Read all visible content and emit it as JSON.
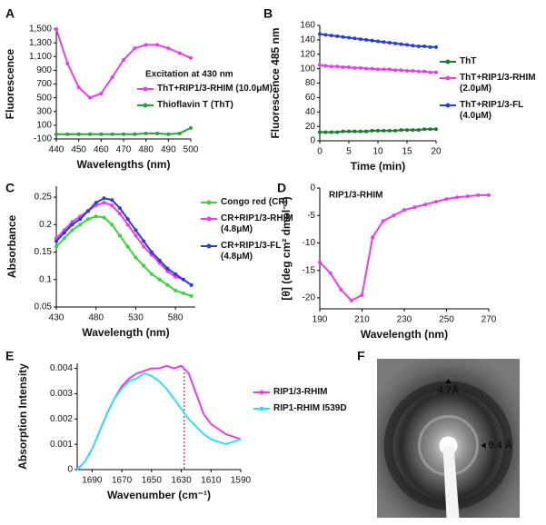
{
  "chart_data": [
    {
      "type": "line",
      "panel": "A",
      "annotation": "Excitation at 430 nm",
      "xlabel": "Wavelengths (nm)",
      "ylabel": "Fluorescence",
      "x": [
        440,
        445,
        450,
        455,
        460,
        465,
        470,
        475,
        480,
        485,
        490,
        495,
        500
      ],
      "xlim": [
        440,
        500
      ],
      "xticks": [
        440,
        450,
        460,
        470,
        480,
        490,
        500
      ],
      "ylim": [
        -100,
        1500
      ],
      "yticks": [
        -100,
        100,
        300,
        500,
        700,
        900,
        {
          "value": 1100,
          "label": "1,100"
        },
        {
          "value": 1300,
          "label": "1,300"
        },
        {
          "value": 1500,
          "label": "1,500"
        }
      ],
      "series": [
        {
          "name": "ThT+RIP1/3-RHIM (10.0μM)",
          "color": "#e83ee8",
          "values": [
            1500,
            1000,
            650,
            500,
            560,
            800,
            1050,
            1220,
            1270,
            1270,
            1220,
            1150,
            1080
          ]
        },
        {
          "name": "Thioflavin T (ThT)",
          "color": "#2e9e3e",
          "values": [
            -30,
            -30,
            -30,
            -30,
            -30,
            -30,
            -30,
            -30,
            -20,
            -20,
            -30,
            -20,
            60
          ]
        }
      ]
    },
    {
      "type": "line",
      "panel": "B",
      "xlabel": "Time (min)",
      "ylabel": "Fluorescence 485 nm",
      "x": [
        0,
        1,
        2,
        3,
        4,
        5,
        6,
        7,
        8,
        9,
        10,
        11,
        12,
        13,
        14,
        15,
        16,
        17,
        18,
        19,
        20
      ],
      "xlim": [
        0,
        20
      ],
      "xticks": [
        0,
        5,
        10,
        15,
        20
      ],
      "ylim": [
        0,
        160
      ],
      "yticks": [
        0,
        20,
        40,
        60,
        80,
        100,
        120,
        140,
        160
      ],
      "series": [
        {
          "name": "ThT",
          "color": "#1e7a30",
          "values": [
            12,
            12,
            12,
            12,
            13,
            13,
            13,
            13,
            13,
            14,
            14,
            14,
            14,
            14,
            15,
            15,
            15,
            15,
            16,
            16,
            16
          ]
        },
        {
          "name": "ThT+RIP1/3-RHIM (2.0μM)",
          "color": "#e83ee8",
          "values": [
            105,
            104,
            103,
            103,
            102,
            102,
            101,
            101,
            100,
            100,
            99,
            99,
            99,
            98,
            98,
            97,
            97,
            96,
            96,
            95,
            95
          ]
        },
        {
          "name": "ThT+RIP1/3-FL (4.0μM)",
          "color": "#2a3fd0",
          "values": [
            148,
            147,
            146,
            145,
            144,
            143,
            142,
            141,
            140,
            139,
            138,
            137,
            136,
            135,
            134,
            133,
            132,
            131,
            131,
            130,
            130
          ]
        }
      ]
    },
    {
      "type": "line",
      "panel": "C",
      "xlabel": "Wavelength (nm)",
      "ylabel": "Absorbance",
      "x": [
        430,
        440,
        450,
        460,
        470,
        480,
        490,
        500,
        510,
        520,
        530,
        540,
        550,
        560,
        570,
        580,
        590,
        600
      ],
      "xlim": [
        430,
        605
      ],
      "xticks": [
        430,
        480,
        530,
        580
      ],
      "ylim": [
        0.05,
        0.27
      ],
      "yticks": [
        0.05,
        0.1,
        0.15,
        0.2,
        0.25
      ],
      "series": [
        {
          "name": "Congo red (CR)",
          "color": "#3ad43a",
          "values": [
            0.16,
            0.175,
            0.19,
            0.2,
            0.21,
            0.215,
            0.213,
            0.2,
            0.18,
            0.16,
            0.14,
            0.125,
            0.11,
            0.1,
            0.09,
            0.08,
            0.075,
            0.07
          ]
        },
        {
          "name": "CR+RIP1/3-RHIM (4.8μM)",
          "color": "#e83ee8",
          "values": [
            0.175,
            0.19,
            0.205,
            0.215,
            0.225,
            0.235,
            0.24,
            0.235,
            0.22,
            0.2,
            0.18,
            0.16,
            0.145,
            0.13,
            0.115,
            0.105,
            0.1,
            0.09
          ]
        },
        {
          "name": "CR+RIP1/3-FL (4.8μM)",
          "color": "#2a3fd0",
          "values": [
            0.17,
            0.185,
            0.2,
            0.21,
            0.225,
            0.24,
            0.248,
            0.245,
            0.23,
            0.21,
            0.19,
            0.17,
            0.15,
            0.135,
            0.12,
            0.11,
            0.1,
            0.09
          ]
        }
      ]
    },
    {
      "type": "line",
      "panel": "D",
      "annotation": "RIP1/3-RHIM",
      "xlabel": "Wavelength (nm)",
      "ylabel": "[θ] (deg cm² dmol⁻¹)",
      "x": [
        190,
        195,
        200,
        205,
        210,
        215,
        220,
        225,
        230,
        235,
        240,
        245,
        250,
        255,
        260,
        265,
        270
      ],
      "xlim": [
        190,
        270
      ],
      "xticks": [
        190,
        210,
        230,
        250,
        270
      ],
      "ylim": [
        -22,
        0
      ],
      "yticks": [
        -20,
        -15,
        -10,
        -5,
        0
      ],
      "series": [
        {
          "color": "#e83ee8",
          "values": [
            -13.5,
            -15.5,
            -18.5,
            -20.5,
            -19.5,
            -9,
            -6,
            -5,
            -4,
            -3.5,
            -3,
            -2.5,
            -2,
            -1.7,
            -1.5,
            -1.3,
            -1.3
          ]
        }
      ]
    },
    {
      "type": "line",
      "panel": "E",
      "xlabel": "Wavenumber (cm⁻¹)",
      "ylabel": "Absorption Intensity",
      "x": [
        1700,
        1695,
        1690,
        1685,
        1680,
        1675,
        1670,
        1665,
        1660,
        1655,
        1650,
        1645,
        1640,
        1635,
        1630,
        1625,
        1620,
        1615,
        1610,
        1605,
        1600,
        1595,
        1590
      ],
      "xlim": [
        1700,
        1590
      ],
      "xticks": [
        1690,
        1670,
        1650,
        1630,
        1610,
        1590
      ],
      "ylim": [
        0,
        0.0042
      ],
      "yticks": [
        0,
        0.001,
        0.002,
        0.003,
        0.004
      ],
      "reference_x": 1628,
      "reference_color": "#e02020",
      "series": [
        {
          "name": "RIP1/3-RHIM",
          "color": "#e83ee8",
          "values": [
            0,
            0.0003,
            0.0008,
            0.0015,
            0.0022,
            0.0028,
            0.0033,
            0.0036,
            0.0038,
            0.0039,
            0.004,
            0.004,
            0.0041,
            0.004,
            0.0041,
            0.0038,
            0.003,
            0.0022,
            0.0018,
            0.0016,
            0.0014,
            0.0013,
            0.0012
          ]
        },
        {
          "name": "RIP1-RHIM I539D",
          "color": "#30e0f0",
          "values": [
            0,
            0.0003,
            0.0008,
            0.0015,
            0.0022,
            0.0028,
            0.0032,
            0.0035,
            0.0036,
            0.0038,
            0.0037,
            0.0035,
            0.0032,
            0.0028,
            0.0024,
            0.002,
            0.0017,
            0.0014,
            0.0012,
            0.0011,
            0.001,
            0.0011,
            0.0012
          ]
        }
      ]
    },
    {
      "type": "image",
      "panel": "F",
      "annotations": [
        "4.7Å",
        "9.4 Å"
      ]
    }
  ]
}
